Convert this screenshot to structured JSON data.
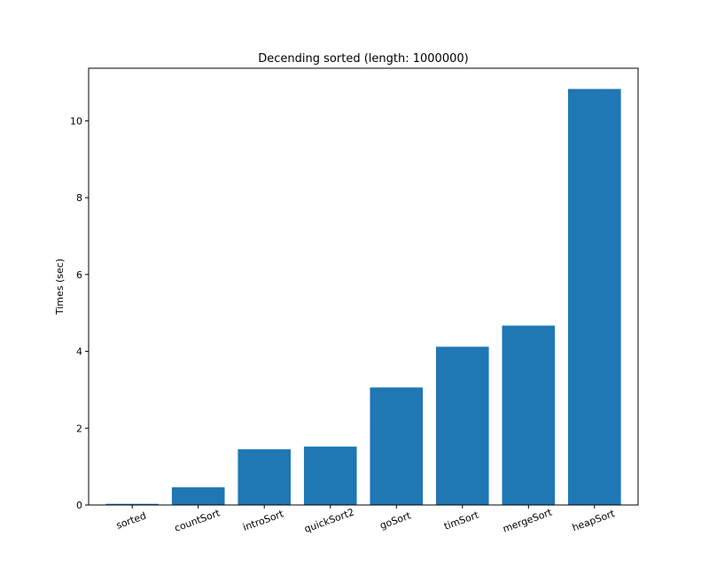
{
  "chart_data": {
    "type": "bar",
    "title": "Decending sorted (length: 1000000)",
    "xlabel": "",
    "ylabel": "Times (sec)",
    "categories": [
      "sorted",
      "countSort",
      "introSort",
      "quickSort2",
      "goSort",
      "timSort",
      "mergeSort",
      "heapSort"
    ],
    "values": [
      0.03,
      0.46,
      1.45,
      1.52,
      3.06,
      4.12,
      4.67,
      10.83
    ],
    "ylim": [
      0,
      11.37
    ],
    "yticks": [
      0,
      2,
      4,
      6,
      8,
      10
    ],
    "bar_color": "#1f77b4",
    "grid": false,
    "legend": "none"
  }
}
